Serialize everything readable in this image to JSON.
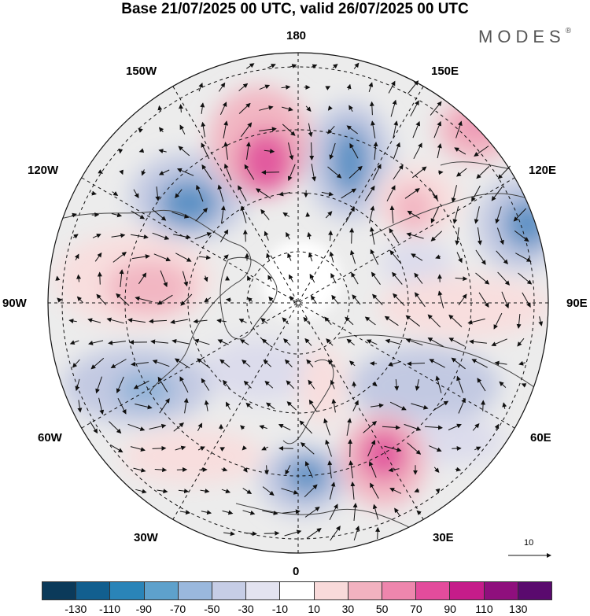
{
  "title": "Base 21/07/2025 00 UTC, valid 26/07/2025 00 UTC",
  "logo": "MODES",
  "logo_mark": "®",
  "longitude_labels": {
    "top": "180",
    "bottom": "0",
    "left": "90W",
    "right": "90E",
    "upper_left_1": "150W",
    "upper_left_2": "120W",
    "lower_left_1": "60W",
    "lower_left_2": "30W",
    "upper_right_1": "150E",
    "upper_right_2": "120E",
    "lower_right_1": "60E",
    "lower_right_2": "30E"
  },
  "wind_reference": "10",
  "colorbar": {
    "colors": [
      "#0b3a5a",
      "#125f8f",
      "#2a84b8",
      "#5ea1cc",
      "#9ab8dd",
      "#c6cde6",
      "#e3e3f0",
      "#ffffff",
      "#f9dada",
      "#f2b2c0",
      "#ee86ad",
      "#e34c9c",
      "#c51c8a",
      "#8f0f7d",
      "#5a0a6e"
    ],
    "tick_labels": [
      "-130",
      "-110",
      "-90",
      "-70",
      "-50",
      "-30",
      "-10",
      "10",
      "30",
      "50",
      "70",
      "90",
      "110",
      "130"
    ]
  },
  "anomaly_colors": {
    "neutral": "#ececec",
    "neg_light": "#dcdcec",
    "neg_mid": "#c2c9e2",
    "neg_strong": "#8fb2d8",
    "neg_core": "#5d92c5",
    "pos_light": "#f8dede",
    "pos_mid": "#f2b6c2",
    "pos_strong": "#ec8db1",
    "pos_core": "#e25a9f"
  }
}
